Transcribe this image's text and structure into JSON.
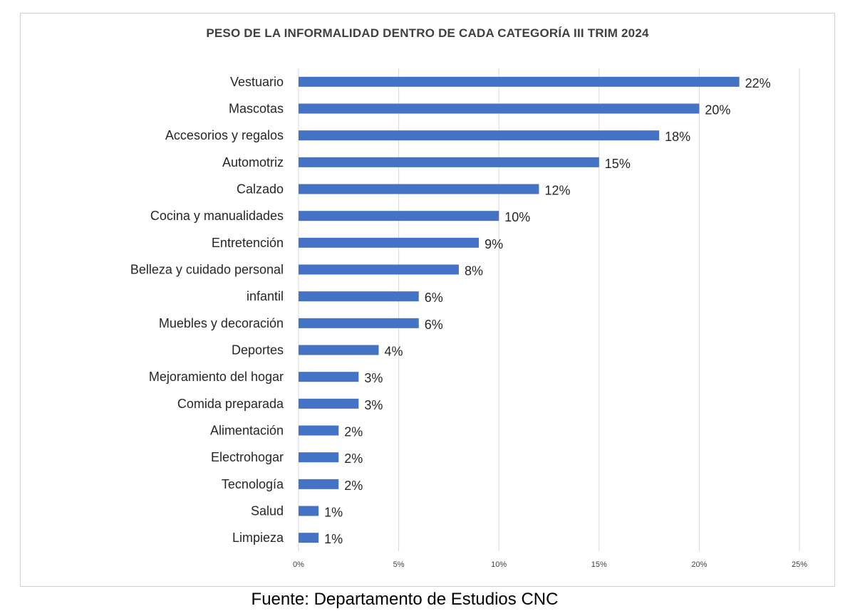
{
  "chart_data": {
    "type": "bar",
    "orientation": "horizontal",
    "title": "PESO DE LA INFORMALIDAD DENTRO DE CADA CATEGORÍA III TRIM 2024",
    "categories": [
      "Vestuario",
      "Mascotas",
      "Accesorios y regalos",
      "Automotriz",
      "Calzado",
      "Cocina y manualidades",
      "Entretención",
      "Belleza y cuidado personal",
      "infantil",
      "Muebles y decoración",
      "Deportes",
      "Mejoramiento del hogar",
      "Comida preparada",
      "Alimentación",
      "Electrohogar",
      "Tecnología",
      "Salud",
      "Limpieza"
    ],
    "values": [
      22,
      20,
      18,
      15,
      12,
      10,
      9,
      8,
      6,
      6,
      4,
      3,
      3,
      2,
      2,
      2,
      1,
      1
    ],
    "data_labels": [
      "22%",
      "20%",
      "18%",
      "15%",
      "12%",
      "10%",
      "9%",
      "8%",
      "6%",
      "6%",
      "4%",
      "3%",
      "3%",
      "2%",
      "2%",
      "2%",
      "1%",
      "1%"
    ],
    "xlim": [
      0,
      25
    ],
    "x_ticks": [
      "0%",
      "5%",
      "10%",
      "15%",
      "20%",
      "25%"
    ],
    "grid": "vertical",
    "bar_color": "#4472C4",
    "legend": "none"
  },
  "source": "Fuente: Departamento de Estudios CNC"
}
